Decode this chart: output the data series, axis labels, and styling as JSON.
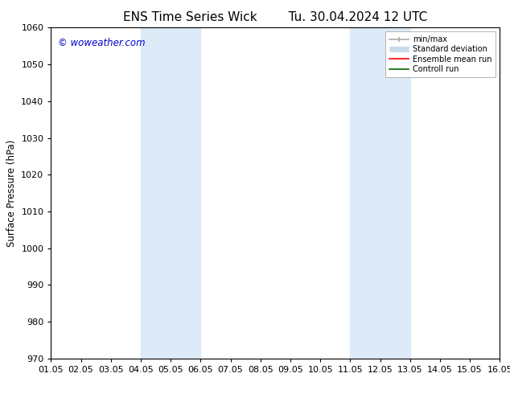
{
  "title_left": "ENS Time Series Wick",
  "title_right": "Tu. 30.04.2024 12 UTC",
  "ylabel": "Surface Pressure (hPa)",
  "ylim": [
    970,
    1060
  ],
  "yticks": [
    970,
    980,
    990,
    1000,
    1010,
    1020,
    1030,
    1040,
    1050,
    1060
  ],
  "xtick_labels": [
    "01.05",
    "02.05",
    "03.05",
    "04.05",
    "05.05",
    "06.05",
    "07.05",
    "08.05",
    "09.05",
    "10.05",
    "11.05",
    "12.05",
    "13.05",
    "14.05",
    "15.05",
    "16.05"
  ],
  "xlim": [
    0,
    15
  ],
  "shaded_regions": [
    {
      "x_start": 3,
      "x_end": 5,
      "color": "#ddeaf7"
    },
    {
      "x_start": 10,
      "x_end": 12,
      "color": "#ddeaf7"
    }
  ],
  "watermark": "© woweather.com",
  "watermark_color": "#0000cc",
  "bg_color": "#ffffff",
  "spine_color": "#000000",
  "legend_minmax_color": "#aaaaaa",
  "legend_std_color": "#c8daea",
  "legend_ens_color": "#ff0000",
  "legend_ctrl_color": "#006600",
  "title_fontsize": 11,
  "tick_fontsize": 8,
  "ylabel_fontsize": 8.5,
  "watermark_fontsize": 8.5
}
